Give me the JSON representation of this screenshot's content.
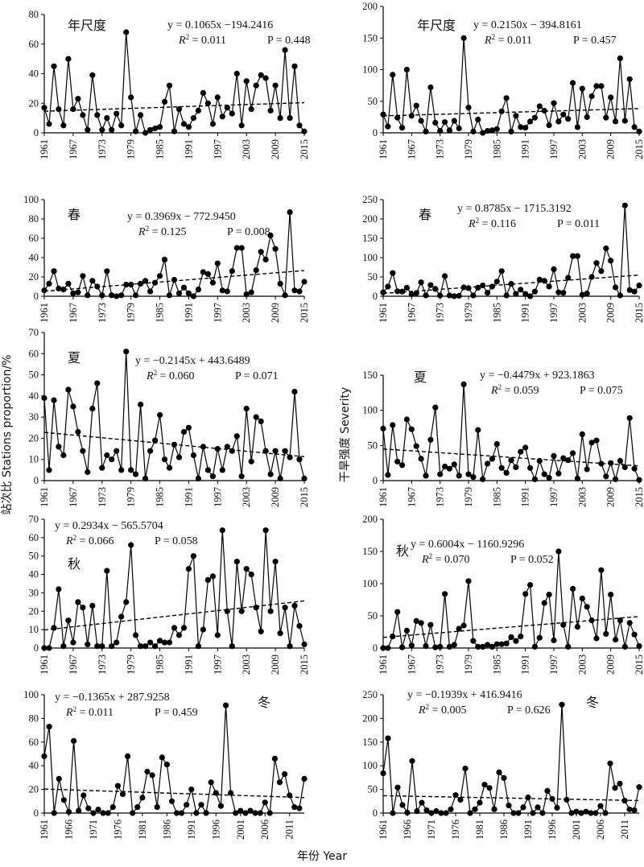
{
  "figure": {
    "y_label_left": "站次比 Stations proportion/%",
    "y_label_right": "干旱强度 Severity",
    "x_label": "年份 Year"
  },
  "chart_data": [
    {
      "type": "line",
      "side": "left",
      "season_label": "年尺度",
      "equation": "y = 0.1065x −194.2416",
      "r2": "R2 = 0.011",
      "p": "P = 0.448",
      "ylim": [
        0,
        80
      ],
      "yticks": [
        0,
        20,
        40,
        60,
        80
      ],
      "xlim": [
        1961,
        2015
      ],
      "xticks": [
        1961,
        1967,
        1973,
        1979,
        1985,
        1991,
        1997,
        2003,
        2009,
        2015
      ],
      "x_start": 1961,
      "values": [
        17,
        6,
        45,
        16,
        5,
        50,
        16,
        23,
        12,
        2,
        39,
        12,
        2,
        10,
        2,
        13,
        5,
        68,
        24,
        1,
        12,
        0,
        2,
        3,
        4,
        21,
        32,
        1,
        16,
        6,
        4,
        10,
        15,
        27,
        20,
        6,
        24,
        11,
        17,
        13,
        40,
        5,
        35,
        16,
        32,
        39,
        37,
        15,
        32,
        10,
        56,
        10,
        45,
        5,
        1
      ],
      "trend": [
        14.6,
        20.4
      ]
    },
    {
      "type": "line",
      "side": "right",
      "season_label": "年尺度",
      "equation": "y = 0.2150x − 394.8161",
      "r2": "R2 = 0.011",
      "p": "P = 0.457",
      "ylim": [
        0,
        200
      ],
      "yticks": [
        0,
        50,
        100,
        150,
        200
      ],
      "xlim": [
        1961,
        2015
      ],
      "xticks": [
        1961,
        1967,
        1973,
        1979,
        1985,
        1991,
        1997,
        2003,
        2009,
        2015
      ],
      "x_start": 1961,
      "values": [
        29,
        10,
        92,
        24,
        8,
        100,
        27,
        43,
        19,
        2,
        72,
        16,
        3,
        17,
        4,
        19,
        7,
        150,
        40,
        2,
        21,
        0,
        3,
        4,
        6,
        34,
        55,
        2,
        27,
        9,
        8,
        18,
        24,
        42,
        35,
        12,
        47,
        18,
        29,
        22,
        79,
        9,
        70,
        25,
        58,
        74,
        74,
        24,
        56,
        18,
        118,
        19,
        85,
        9,
        2
      ],
      "trend": [
        26.8,
        38.4
      ]
    },
    {
      "type": "line",
      "side": "left",
      "season_label": "春",
      "equation": "y = 0.3969x − 772.9450",
      "r2": "R2 = 0.125",
      "p": "P = 0.008",
      "ylim": [
        0,
        100
      ],
      "yticks": [
        0,
        20,
        40,
        60,
        80,
        100
      ],
      "xlim": [
        1961,
        2015
      ],
      "xticks": [
        1961,
        1967,
        1973,
        1979,
        1985,
        1991,
        1997,
        2003,
        2009,
        2015
      ],
      "x_start": 1961,
      "values": [
        6,
        13,
        26,
        8,
        7,
        13,
        3,
        4,
        21,
        1,
        16,
        10,
        1,
        26,
        1,
        0,
        1,
        12,
        12,
        1,
        13,
        16,
        5,
        14,
        21,
        38,
        1,
        17,
        3,
        9,
        3,
        0,
        7,
        25,
        23,
        14,
        34,
        6,
        5,
        26,
        50,
        50,
        2,
        4,
        27,
        46,
        38,
        63,
        49,
        13,
        1,
        87,
        6,
        5,
        15
      ],
      "trend": [
        5.2,
        26.6
      ]
    },
    {
      "type": "line",
      "side": "right",
      "season_label": "春",
      "equation": "y = 0.8785x − 1715.3192",
      "r2": "R2 = 0.116",
      "p": "P = 0.011",
      "ylim": [
        0,
        250
      ],
      "yticks": [
        0,
        50,
        100,
        150,
        200,
        250
      ],
      "xlim": [
        1961,
        2015
      ],
      "xticks": [
        1961,
        1967,
        1973,
        1979,
        1985,
        1991,
        1997,
        2003,
        2009,
        2015
      ],
      "x_start": 1961,
      "values": [
        10,
        25,
        60,
        13,
        12,
        22,
        5,
        8,
        36,
        2,
        29,
        19,
        2,
        52,
        2,
        0,
        1,
        23,
        21,
        2,
        22,
        28,
        9,
        25,
        38,
        65,
        2,
        32,
        6,
        17,
        6,
        0,
        12,
        43,
        40,
        25,
        70,
        10,
        9,
        48,
        104,
        104,
        4,
        7,
        50,
        86,
        65,
        124,
        92,
        23,
        2,
        235,
        16,
        12,
        28
      ],
      "trend": [
        7.4,
        54.8
      ]
    },
    {
      "type": "line",
      "side": "left",
      "season_label": "夏",
      "equation": "y = −0.2145x + 443.6489",
      "r2": "R2 = 0.060",
      "p": "P = 0.071",
      "ylim": [
        0,
        70
      ],
      "yticks": [
        0,
        10,
        20,
        30,
        40,
        50,
        60,
        70
      ],
      "xlim": [
        1961,
        2015
      ],
      "xticks": [
        1961,
        1967,
        1973,
        1979,
        1985,
        1991,
        1997,
        2003,
        2009,
        2015
      ],
      "x_start": 1961,
      "values": [
        39,
        5,
        38,
        16,
        12,
        43,
        35,
        23,
        14,
        4,
        34,
        46,
        6,
        12,
        10,
        14,
        5,
        61,
        5,
        3,
        36,
        1,
        14,
        19,
        31,
        10,
        6,
        17,
        11,
        23,
        25,
        12,
        1,
        16,
        5,
        2,
        15,
        5,
        16,
        14,
        21,
        2,
        34,
        9,
        30,
        28,
        14,
        3,
        14,
        1,
        14,
        11,
        42,
        10,
        1
      ],
      "trend": [
        22.8,
        11.3
      ]
    },
    {
      "type": "line",
      "side": "right",
      "season_label": "夏",
      "equation": "y = −0.4479x + 923.1863",
      "r2": "R2 = 0.059",
      "p": "P = 0.075",
      "ylim": [
        0,
        150
      ],
      "yticks": [
        0,
        50,
        100,
        150
      ],
      "xlim": [
        1961,
        2015
      ],
      "xticks": [
        1961,
        1967,
        1973,
        1979,
        1985,
        1991,
        1997,
        2003,
        2009,
        2015
      ],
      "x_start": 1961,
      "values": [
        74,
        8,
        79,
        27,
        22,
        87,
        73,
        49,
        31,
        7,
        58,
        104,
        9,
        20,
        17,
        23,
        7,
        137,
        9,
        5,
        72,
        2,
        24,
        31,
        52,
        18,
        11,
        29,
        19,
        41,
        47,
        18,
        2,
        28,
        9,
        4,
        35,
        10,
        32,
        29,
        39,
        3,
        66,
        16,
        54,
        57,
        24,
        6,
        25,
        2,
        28,
        19,
        89,
        17,
        1
      ],
      "trend": [
        45.0,
        21.0
      ]
    },
    {
      "type": "line",
      "side": "left",
      "season_label": "秋",
      "equation": "y = 0.2934x − 565.5704",
      "r2": "R2 = 0.066",
      "p": "P = 0.058",
      "ylim": [
        0,
        70
      ],
      "yticks": [
        0,
        10,
        20,
        30,
        40,
        50,
        60,
        70
      ],
      "xlim": [
        1961,
        2015
      ],
      "xticks": [
        1961,
        1967,
        1973,
        1979,
        1985,
        1991,
        1997,
        2003,
        2009,
        2015
      ],
      "x_start": 1961,
      "values": [
        0,
        0,
        11,
        32,
        1,
        15,
        3,
        25,
        22,
        2,
        23,
        1,
        1,
        42,
        1,
        3,
        17,
        25,
        56,
        7,
        1,
        1,
        3,
        1,
        4,
        3,
        3,
        11,
        7,
        11,
        43,
        50,
        1,
        10,
        37,
        39,
        7,
        64,
        20,
        1,
        47,
        20,
        43,
        40,
        22,
        9,
        64,
        20,
        47,
        8,
        22,
        1,
        23,
        12,
        2
      ],
      "trend": [
        9.8,
        25.6
      ]
    },
    {
      "type": "line",
      "side": "right",
      "season_label": "秋",
      "equation": "y = 0.6004x − 1160.9296",
      "r2": "R2 = 0.070",
      "p": "P = 0.052",
      "ylim": [
        0,
        200
      ],
      "yticks": [
        0,
        50,
        100,
        150,
        200
      ],
      "xlim": [
        1961,
        2015
      ],
      "xticks": [
        1961,
        1967,
        1973,
        1979,
        1985,
        1991,
        1997,
        2003,
        2009,
        2015
      ],
      "x_start": 1961,
      "values": [
        0,
        0,
        18,
        56,
        1,
        27,
        4,
        42,
        39,
        3,
        36,
        1,
        2,
        84,
        2,
        5,
        30,
        35,
        104,
        11,
        2,
        2,
        5,
        2,
        6,
        6,
        7,
        17,
        11,
        18,
        84,
        98,
        2,
        16,
        70,
        83,
        12,
        150,
        36,
        2,
        92,
        33,
        77,
        64,
        43,
        15,
        121,
        22,
        83,
        13,
        43,
        2,
        39,
        21,
        3
      ],
      "trend": [
        16.5,
        48.9
      ]
    },
    {
      "type": "line",
      "side": "left",
      "season_label": "冬",
      "equation": "y = −0.1365x + 287.9258",
      "r2": "R2 = 0.011",
      "p": "P = 0.459",
      "ylim": [
        0,
        100
      ],
      "yticks": [
        0,
        20,
        40,
        60,
        80,
        100
      ],
      "xlim": [
        1961,
        2014
      ],
      "xticks": [
        1961,
        1966,
        1971,
        1976,
        1981,
        1986,
        1991,
        1996,
        2001,
        2006,
        2011
      ],
      "x_start": 1961,
      "values": [
        48,
        73,
        0,
        29,
        11,
        1,
        61,
        2,
        15,
        4,
        0,
        3,
        0,
        0,
        5,
        23,
        16,
        48,
        0,
        5,
        13,
        35,
        32,
        5,
        47,
        41,
        10,
        0,
        0,
        7,
        20,
        0,
        7,
        0,
        26,
        17,
        6,
        91,
        17,
        0,
        2,
        0,
        2,
        0,
        0,
        9,
        0,
        46,
        26,
        33,
        15,
        5,
        4,
        29
      ],
      "trend": [
        20.3,
        13.1
      ]
    },
    {
      "type": "line",
      "side": "right",
      "season_label": "冬",
      "equation": "y = −0.1939x + 416.9416",
      "r2": "R2 = 0.005",
      "p": "P = 0.626",
      "ylim": [
        0,
        250
      ],
      "yticks": [
        0,
        50,
        100,
        150,
        200,
        250
      ],
      "xlim": [
        1961,
        2014
      ],
      "xticks": [
        1961,
        1966,
        1971,
        1976,
        1981,
        1986,
        1991,
        1996,
        2001,
        2006,
        2011
      ],
      "x_start": 1961,
      "values": [
        84,
        158,
        0,
        54,
        17,
        1,
        110,
        4,
        22,
        6,
        0,
        4,
        0,
        0,
        8,
        38,
        28,
        94,
        0,
        8,
        22,
        60,
        53,
        8,
        86,
        74,
        16,
        0,
        0,
        12,
        33,
        0,
        12,
        0,
        47,
        30,
        11,
        229,
        28,
        0,
        3,
        0,
        3,
        0,
        0,
        15,
        0,
        105,
        53,
        62,
        26,
        8,
        6,
        55
      ],
      "trend": [
        36.7,
        26.4
      ]
    }
  ]
}
